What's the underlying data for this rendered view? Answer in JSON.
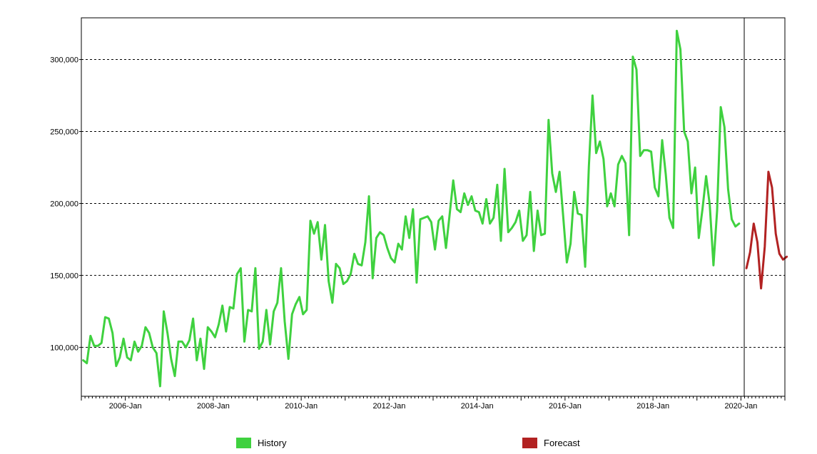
{
  "chart_data": {
    "type": "line",
    "title": "",
    "xlabel": "",
    "ylabel": "",
    "x_ticks": [
      "2006-Jan",
      "2008-Jan",
      "2010-Jan",
      "2012-Jan",
      "2014-Jan",
      "2016-Jan",
      "2018-Jan",
      "2020-Jan"
    ],
    "y_ticks": [
      "100,000",
      "150,000",
      "200,000",
      "250,000",
      "300,000"
    ],
    "y_tick_values": [
      100000,
      150000,
      200000,
      250000,
      300000
    ],
    "ylim": [
      66000,
      329000
    ],
    "xlim": [
      "2005-Jan",
      "2020-Dec"
    ],
    "grid": "horizontal dashed",
    "legend_position": "bottom",
    "forecast_start": "2020-Feb",
    "series": [
      {
        "name": "History",
        "color": "#3fd13f",
        "start": "2005-Jan",
        "values": [
          91000,
          89000,
          108000,
          101000,
          101000,
          103000,
          121000,
          120000,
          110000,
          87000,
          93000,
          106000,
          93000,
          91000,
          104000,
          97000,
          101000,
          114000,
          110000,
          100000,
          96000,
          73000,
          125000,
          110000,
          92000,
          80000,
          104000,
          104000,
          100000,
          105000,
          120000,
          91000,
          106000,
          85000,
          114000,
          111000,
          107000,
          116000,
          129000,
          111000,
          128000,
          127000,
          151000,
          155000,
          104000,
          126000,
          125000,
          155000,
          99000,
          104000,
          126000,
          102000,
          125000,
          131000,
          155000,
          118000,
          92000,
          123000,
          130000,
          135000,
          123000,
          126000,
          188000,
          179000,
          187000,
          161000,
          185000,
          146000,
          131000,
          158000,
          155000,
          144000,
          146000,
          151000,
          165000,
          158000,
          157000,
          173000,
          205000,
          148000,
          176000,
          180000,
          178000,
          169000,
          162000,
          159000,
          172000,
          168000,
          191000,
          176000,
          196000,
          145000,
          189000,
          190000,
          191000,
          187000,
          168000,
          188000,
          191000,
          169000,
          192000,
          216000,
          196000,
          194000,
          207000,
          199000,
          205000,
          195000,
          194000,
          186000,
          203000,
          186000,
          190000,
          213000,
          174000,
          224000,
          180000,
          183000,
          187000,
          195000,
          174000,
          178000,
          208000,
          167000,
          195000,
          178000,
          179000,
          258000,
          221000,
          208000,
          222000,
          191000,
          159000,
          172000,
          208000,
          193000,
          192000,
          156000,
          226000,
          275000,
          235000,
          243000,
          231000,
          198000,
          207000,
          198000,
          227000,
          233000,
          228000,
          178000,
          302000,
          293000,
          233000,
          237000,
          237000,
          236000,
          211000,
          205000,
          244000,
          220000,
          190000,
          183000,
          320000,
          307000,
          250000,
          243000,
          207000,
          225000,
          176000,
          196000,
          219000,
          199000,
          157000,
          195000,
          267000,
          253000,
          210000,
          189000,
          184000,
          186000
        ]
      },
      {
        "name": "Forecast",
        "color": "#b22222",
        "start": "2020-Feb",
        "values": [
          155000,
          166000,
          186000,
          173000,
          141000,
          170000,
          222000,
          211000,
          179000,
          165000,
          161000,
          163000
        ]
      }
    ]
  },
  "legend": {
    "history_label": "History",
    "forecast_label": "Forecast",
    "history_color": "#3fd13f",
    "forecast_color": "#b22222"
  }
}
